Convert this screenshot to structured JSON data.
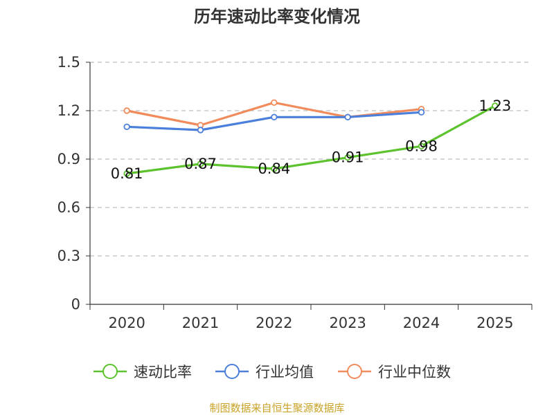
{
  "chart_data": {
    "type": "line",
    "title": "历年速动比率变化情况",
    "categories": [
      "2020",
      "2021",
      "2022",
      "2023",
      "2024",
      "2025"
    ],
    "y_ticks": [
      "0",
      "0.3",
      "0.6",
      "0.9",
      "1.2",
      "1.5"
    ],
    "ylim": [
      0,
      1.5
    ],
    "grid": true,
    "legend_position": "bottom",
    "series": [
      {
        "name": "速动比率",
        "color": "#5cc22d",
        "values": [
          0.81,
          0.87,
          0.84,
          0.91,
          0.98,
          1.23
        ],
        "labels": [
          "0.81",
          "0.87",
          "0.84",
          "0.91",
          "0.98",
          "1.23"
        ],
        "show_labels": true
      },
      {
        "name": "行业均值",
        "color": "#4a7fdb",
        "values": [
          1.1,
          1.08,
          1.16,
          1.16,
          1.19,
          null
        ],
        "show_labels": false
      },
      {
        "name": "行业中位数",
        "color": "#f28b5b",
        "values": [
          1.2,
          1.11,
          1.25,
          1.16,
          1.21,
          null
        ],
        "show_labels": false
      }
    ],
    "source": "制图数据来自恒生聚源数据库"
  }
}
